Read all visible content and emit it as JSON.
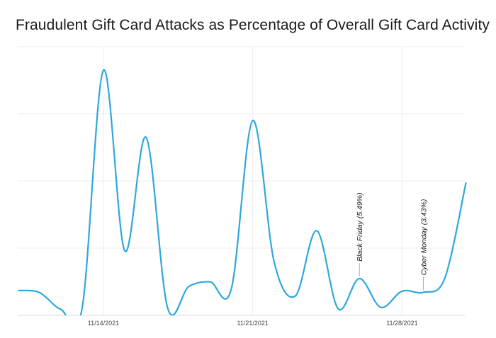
{
  "title": "Fraudulent Gift Card Attacks as Percentage of Overall Gift Card Activity",
  "chart_data": {
    "type": "line",
    "title": "Fraudulent Gift Card Attacks as Percentage of Overall Gift Card Activity",
    "xlabel": "",
    "ylabel": "",
    "x_tick_labels": [
      "11/14/2021",
      "11/21/2021",
      "11/28/2021"
    ],
    "series": [
      {
        "color": "#2ea8dc",
        "points": [
          {
            "x": "11/10/2021",
            "y": 3.7
          },
          {
            "x": "11/11/2021",
            "y": 3.4
          },
          {
            "x": "11/12/2021",
            "y": 0.9
          },
          {
            "x": "11/13/2021",
            "y": 1.1
          },
          {
            "x": "11/14/2021",
            "y": 36.5
          },
          {
            "x": "11/15/2021",
            "y": 9.6
          },
          {
            "x": "11/16/2021",
            "y": 26.5
          },
          {
            "x": "11/17/2021",
            "y": 1.2
          },
          {
            "x": "11/18/2021",
            "y": 4.3
          },
          {
            "x": "11/19/2021",
            "y": 5.0
          },
          {
            "x": "11/20/2021",
            "y": 4.0
          },
          {
            "x": "11/21/2021",
            "y": 29.0
          },
          {
            "x": "11/22/2021",
            "y": 8.0
          },
          {
            "x": "11/23/2021",
            "y": 2.9
          },
          {
            "x": "11/24/2021",
            "y": 12.6
          },
          {
            "x": "11/25/2021",
            "y": 1.0
          },
          {
            "x": "11/26/2021",
            "y": 5.49
          },
          {
            "x": "11/27/2021",
            "y": 1.2
          },
          {
            "x": "11/28/2021",
            "y": 3.6
          },
          {
            "x": "11/29/2021",
            "y": 3.43
          },
          {
            "x": "11/30/2021",
            "y": 5.5
          },
          {
            "x": "12/01/2021",
            "y": 19.8
          }
        ]
      }
    ],
    "annotations": [
      {
        "x": "11/26/2021",
        "text": "Black Friday (5.49%)"
      },
      {
        "x": "11/29/2021",
        "text": "Cyber Monday (3.43%)"
      }
    ],
    "grid": true
  }
}
